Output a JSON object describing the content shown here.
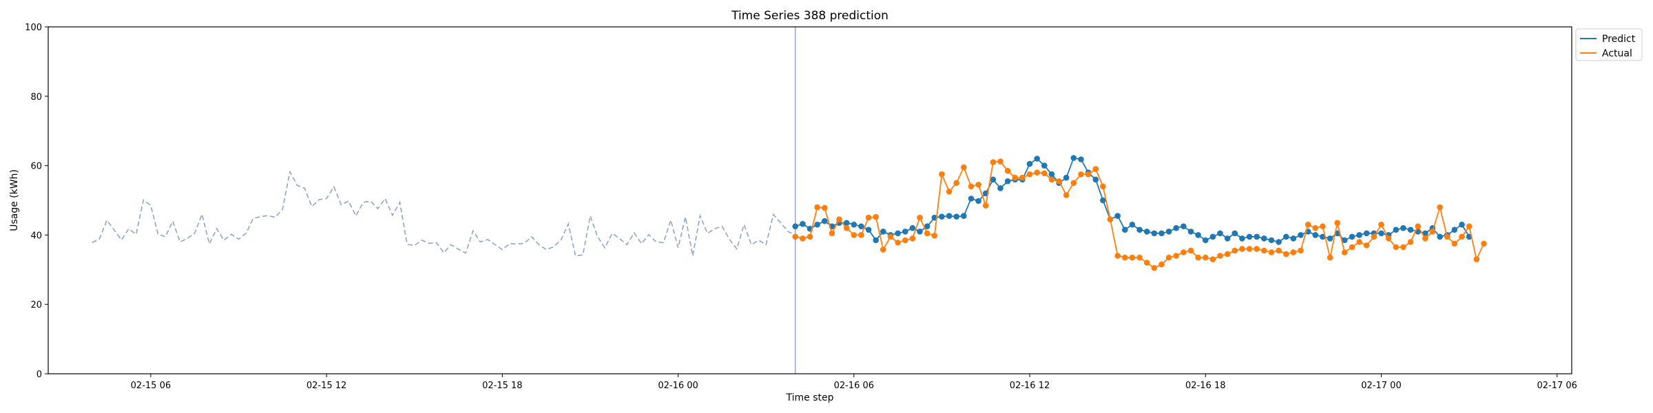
{
  "chart_data": {
    "type": "line",
    "title": "Time Series 388 prediction",
    "xlabel": "Time step",
    "ylabel": "Usage (kWh)",
    "ylim": [
      0,
      100
    ],
    "yticks": [
      0,
      20,
      40,
      60,
      80,
      100
    ],
    "xlim": [
      "2025-02-15T02:30",
      "2025-02-17T06:30"
    ],
    "xticks": [
      {
        "t": "2025-02-15T06:00",
        "label": "02-15 06"
      },
      {
        "t": "2025-02-15T12:00",
        "label": "02-15 12"
      },
      {
        "t": "2025-02-15T18:00",
        "label": "02-15 18"
      },
      {
        "t": "2025-02-16T00:00",
        "label": "02-16 00"
      },
      {
        "t": "2025-02-16T06:00",
        "label": "02-16 06"
      },
      {
        "t": "2025-02-16T12:00",
        "label": "02-16 12"
      },
      {
        "t": "2025-02-16T18:00",
        "label": "02-16 18"
      },
      {
        "t": "2025-02-17T00:00",
        "label": "02-17 00"
      },
      {
        "t": "2025-02-17T06:00",
        "label": "02-17 06"
      }
    ],
    "interval_minutes": 15,
    "grid": false,
    "legend_position": "upper-right-outside",
    "split_time": "2025-02-16T04:00",
    "history": {
      "start": "2025-02-15T04:00",
      "color": "#8da5c7",
      "style": "dashed",
      "values": [
        37.8,
        38.9,
        44.2,
        41.5,
        38.6,
        41.8,
        40.2,
        50.1,
        48.5,
        40.2,
        39.5,
        44.0,
        38.0,
        39.0,
        40.5,
        46.0,
        37.4,
        41.8,
        38.5,
        40.2,
        38.8,
        40.5,
        44.8,
        45.3,
        45.6,
        45.1,
        47.5,
        58.2,
        54.3,
        53.5,
        48.2,
        50.2,
        50.5,
        53.9,
        48.7,
        49.8,
        45.5,
        49.4,
        49.8,
        47.6,
        50.5,
        45.7,
        49.4,
        37.3,
        37.0,
        38.5,
        37.6,
        37.8,
        34.9,
        37.2,
        35.9,
        34.8,
        41.2,
        38.0,
        38.7,
        37.2,
        35.8,
        37.5,
        37.4,
        37.6,
        39.5,
        37.2,
        35.8,
        36.6,
        38.5,
        43.2,
        33.9,
        34.3,
        45.5,
        39.5,
        36.3,
        40.5,
        39.0,
        37.2,
        40.6,
        37.5,
        40.1,
        38.0,
        37.8,
        44.3,
        36.3,
        45.2,
        34.0,
        45.6,
        40.5,
        41.8,
        42.5,
        38.8,
        36.0,
        43.0,
        37.2,
        38.5,
        37.2,
        45.9,
        43.5,
        41.0,
        40.0
      ]
    },
    "series": [
      {
        "name": "Predict",
        "color": "#1f77b4",
        "start": "2025-02-16T04:00",
        "values": [
          42.5,
          43.2,
          41.8,
          43.0,
          44.0,
          42.5,
          43.5,
          43.5,
          43.0,
          42.5,
          41.5,
          38.5,
          41.0,
          40.0,
          40.5,
          41.0,
          42.0,
          41.0,
          42.5,
          45.0,
          45.3,
          45.5,
          45.3,
          45.5,
          50.5,
          49.8,
          52.0,
          56.0,
          53.5,
          55.5,
          56.0,
          56.0,
          60.5,
          62.0,
          60.0,
          57.5,
          55.0,
          56.5,
          62.2,
          61.8,
          58.0,
          56.0,
          50.0,
          44.5,
          45.5,
          41.5,
          43.0,
          41.5,
          41.0,
          40.5,
          40.5,
          41.0,
          42.0,
          42.5,
          41.0,
          40.0,
          38.5,
          39.5,
          40.5,
          39.0,
          40.5,
          39.0,
          39.5,
          39.5,
          39.0,
          38.5,
          38.0,
          39.5,
          39.0,
          40.0,
          41.0,
          40.0,
          39.5,
          39.0,
          40.5,
          38.5,
          39.5,
          40.0,
          40.5,
          40.5,
          40.5,
          40.0,
          41.5,
          42.0,
          41.5,
          41.0,
          40.5,
          42.0,
          39.5,
          40.0,
          41.5,
          43.0,
          39.5
        ]
      },
      {
        "name": "Actual",
        "color": "#ff7f0e",
        "start": "2025-02-16T04:00",
        "values": [
          39.5,
          39.0,
          39.5,
          48.0,
          47.8,
          40.5,
          44.5,
          42.0,
          40.0,
          40.0,
          45.0,
          45.2,
          35.8,
          39.5,
          37.8,
          38.5,
          39.0,
          45.0,
          40.5,
          39.8,
          57.5,
          52.5,
          55.0,
          59.5,
          54.0,
          54.5,
          48.5,
          61.0,
          61.2,
          58.5,
          56.5,
          56.5,
          57.5,
          58.0,
          57.8,
          56.0,
          55.5,
          51.5,
          55.0,
          57.5,
          57.5,
          59.0,
          54.0,
          44.5,
          34.0,
          33.5,
          33.5,
          33.5,
          32.0,
          30.5,
          31.5,
          33.5,
          34.0,
          35.0,
          35.5,
          33.5,
          33.5,
          33.0,
          34.0,
          34.5,
          35.5,
          36.0,
          36.0,
          36.0,
          35.5,
          35.0,
          35.5,
          34.5,
          35.0,
          35.5,
          43.0,
          42.0,
          42.5,
          33.5,
          43.5,
          35.0,
          36.5,
          38.0,
          37.0,
          39.5,
          43.0,
          39.0,
          36.5,
          36.5,
          38.0,
          42.5,
          39.0,
          41.0,
          48.0,
          39.5,
          37.5,
          39.5,
          42.5,
          33.0,
          37.5
        ]
      }
    ]
  }
}
